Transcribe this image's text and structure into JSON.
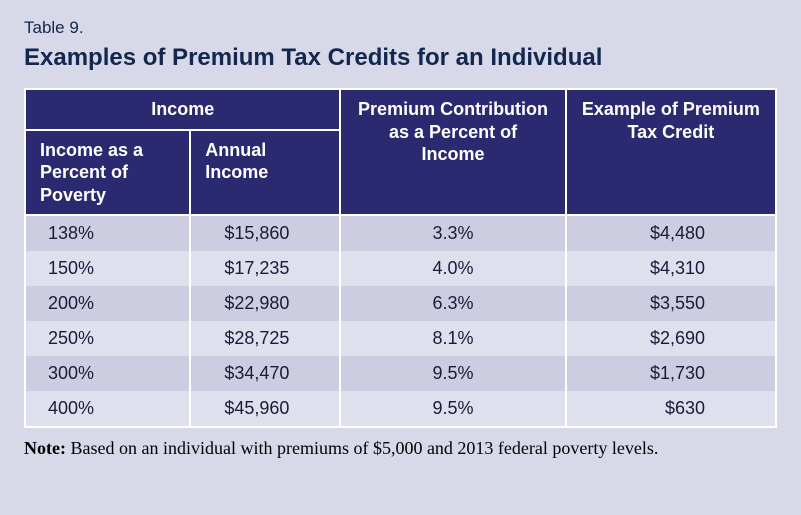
{
  "table_number": "Table 9.",
  "title": "Examples of Premium Tax Credits for an Individual",
  "headers": {
    "income_group": "Income",
    "income_percent_poverty": "Income as a Percent of Poverty",
    "annual_income": "Annual Income",
    "premium_contribution": "Premium Contribution as a Percent of Income",
    "example_credit": "Example of Premium Tax Credit"
  },
  "rows": [
    {
      "pov": "138%",
      "income": "$15,860",
      "pct": "3.3%",
      "credit": "$4,480"
    },
    {
      "pov": "150%",
      "income": "$17,235",
      "pct": "4.0%",
      "credit": "$4,310"
    },
    {
      "pov": "200%",
      "income": "$22,980",
      "pct": "6.3%",
      "credit": "$3,550"
    },
    {
      "pov": "250%",
      "income": "$28,725",
      "pct": "8.1%",
      "credit": "$2,690"
    },
    {
      "pov": "300%",
      "income": "$34,470",
      "pct": "9.5%",
      "credit": "$1,730"
    },
    {
      "pov": "400%",
      "income": "$45,960",
      "pct": "9.5%",
      "credit": "$630"
    }
  ],
  "note_label": "Note:",
  "note_text": " Based on an individual with premiums of $5,000 and 2013 federal poverty levels.",
  "styling": {
    "type": "table",
    "container_bg": "#d7d9e9",
    "header_bg": "#2b2970",
    "header_text_color": "#ffffff",
    "row_odd_bg": "#cdcde2",
    "row_even_bg": "#dfe0ee",
    "border_color": "#ffffff",
    "title_color": "#13274f",
    "body_text_color": "#1a1a3a",
    "title_fontsize_pt": 18,
    "header_fontsize_pt": 13,
    "cell_fontsize_pt": 13,
    "note_font_family": "serif",
    "column_count": 4,
    "row_count": 6
  }
}
